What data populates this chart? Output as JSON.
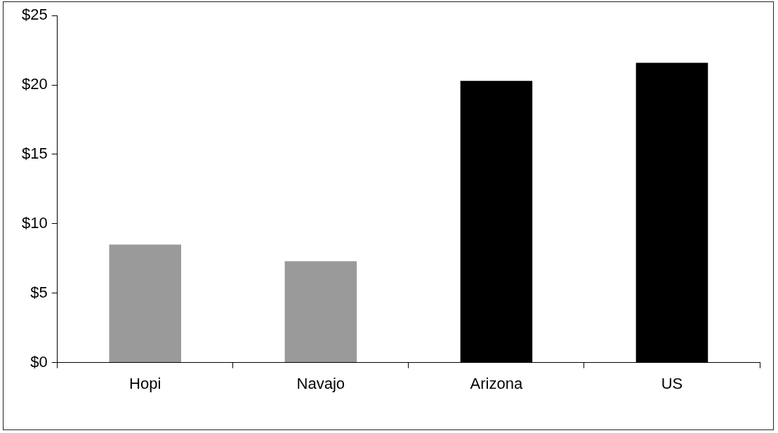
{
  "chart_data": {
    "type": "bar",
    "categories": [
      "Hopi",
      "Navajo",
      "Arizona",
      "US"
    ],
    "values": [
      8.5,
      7.3,
      20.3,
      21.6
    ],
    "colors": [
      "#9a9a9a",
      "#9a9a9a",
      "#000000",
      "#000000"
    ],
    "ylim": [
      0,
      25
    ],
    "yticks": [
      {
        "value": 0,
        "label": "$0"
      },
      {
        "value": 5,
        "label": "$5"
      },
      {
        "value": 10,
        "label": "$10"
      },
      {
        "value": 15,
        "label": "$15"
      },
      {
        "value": 20,
        "label": "$20"
      },
      {
        "value": 25,
        "label": "$25"
      }
    ],
    "grid": false,
    "legend": false
  }
}
